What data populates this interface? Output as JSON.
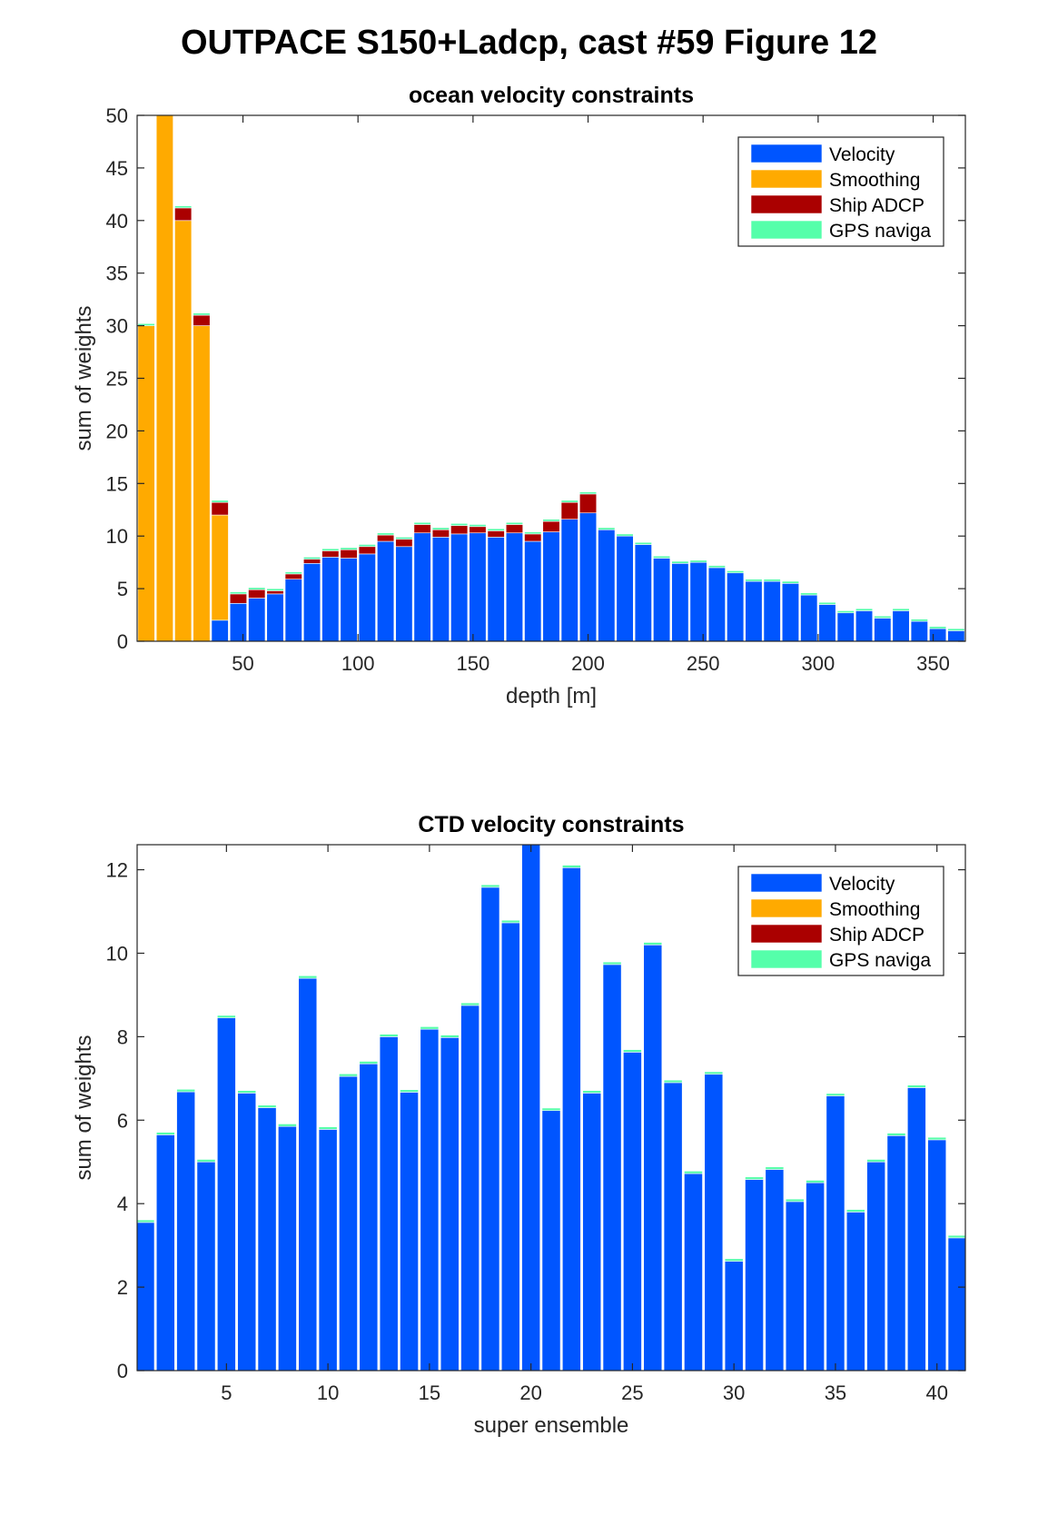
{
  "figure": {
    "title": "OUTPACE S150+Ladcp, cast #59  Figure 12"
  },
  "chart_data": [
    {
      "type": "bar",
      "stacked": true,
      "title": "ocean velocity constraints",
      "xlabel": "depth [m]",
      "ylabel": "sum of weights",
      "xlim": [
        4,
        364
      ],
      "ylim": [
        0,
        50
      ],
      "xticks": [
        50,
        100,
        150,
        200,
        250,
        300,
        350
      ],
      "yticks": [
        0,
        5,
        10,
        15,
        20,
        25,
        30,
        35,
        40,
        45,
        50
      ],
      "bar_width": 7.3,
      "legend_position": "top-right",
      "x": [
        8,
        16,
        24,
        32,
        40,
        48,
        56,
        64,
        72,
        80,
        88,
        96,
        104,
        112,
        120,
        128,
        136,
        144,
        152,
        160,
        168,
        176,
        184,
        192,
        200,
        208,
        216,
        224,
        232,
        240,
        248,
        256,
        264,
        272,
        280,
        288,
        296,
        304,
        312,
        320,
        328,
        336,
        344,
        352,
        360
      ],
      "series": [
        {
          "name": "Velocity",
          "color": "#0055ff",
          "values": [
            0,
            0,
            0,
            0,
            2,
            3.6,
            4.1,
            4.5,
            5.9,
            7.4,
            8.0,
            7.9,
            8.3,
            9.5,
            9.0,
            10.3,
            9.9,
            10.2,
            10.3,
            9.9,
            10.3,
            9.5,
            10.4,
            11.6,
            12.2,
            10.6,
            10.0,
            9.2,
            7.9,
            7.4,
            7.5,
            7.0,
            6.5,
            5.7,
            5.7,
            5.5,
            4.4,
            3.5,
            2.7,
            2.9,
            2.2,
            2.9,
            1.9,
            1.2,
            1.0
          ]
        },
        {
          "name": "Smoothing",
          "color": "#ffaa00",
          "values": [
            30,
            50,
            40,
            30,
            10,
            0,
            0,
            0,
            0,
            0,
            0,
            0,
            0,
            0,
            0,
            0,
            0,
            0,
            0,
            0,
            0,
            0,
            0,
            0,
            0,
            0,
            0,
            0,
            0,
            0,
            0,
            0,
            0,
            0,
            0,
            0,
            0,
            0,
            0,
            0,
            0,
            0,
            0,
            0,
            0
          ]
        },
        {
          "name": "Ship ADCP",
          "color": "#aa0000",
          "values": [
            0,
            0,
            1.2,
            1.0,
            1.2,
            0.9,
            0.8,
            0.3,
            0.5,
            0.4,
            0.6,
            0.8,
            0.7,
            0.6,
            0.7,
            0.8,
            0.7,
            0.8,
            0.6,
            0.6,
            0.8,
            0.7,
            1.0,
            1.6,
            1.8,
            0,
            0,
            0,
            0,
            0,
            0,
            0,
            0,
            0,
            0,
            0,
            0,
            0,
            0,
            0,
            0,
            0,
            0,
            0,
            0
          ]
        },
        {
          "name": "GPS naviga",
          "color": "#55ffaa",
          "values": [
            0.2,
            0.2,
            0.2,
            0.2,
            0.2,
            0.2,
            0.2,
            0.2,
            0.2,
            0.2,
            0.2,
            0.2,
            0.2,
            0.2,
            0.2,
            0.2,
            0.2,
            0.2,
            0.2,
            0.2,
            0.2,
            0.2,
            0.2,
            0.2,
            0.2,
            0.2,
            0.2,
            0.2,
            0.2,
            0.2,
            0.2,
            0.2,
            0.2,
            0.2,
            0.2,
            0.2,
            0.2,
            0.2,
            0.2,
            0.2,
            0.2,
            0.2,
            0.2,
            0.2,
            0.2
          ]
        }
      ]
    },
    {
      "type": "bar",
      "stacked": true,
      "title": "CTD velocity constraints",
      "xlabel": "super ensemble",
      "ylabel": "sum of weights",
      "xlim": [
        0.6,
        41.4
      ],
      "ylim": [
        0,
        12.6
      ],
      "xticks": [
        5,
        10,
        15,
        20,
        25,
        30,
        35,
        40
      ],
      "yticks": [
        0,
        2,
        4,
        6,
        8,
        10,
        12
      ],
      "bar_width": 0.9,
      "legend_position": "top-right",
      "x": [
        1,
        2,
        3,
        4,
        5,
        6,
        7,
        8,
        9,
        10,
        11,
        12,
        13,
        14,
        15,
        16,
        17,
        18,
        19,
        20,
        21,
        22,
        23,
        24,
        25,
        26,
        27,
        28,
        29,
        30,
        31,
        32,
        33,
        34,
        35,
        36,
        37,
        38,
        39,
        40,
        41
      ],
      "series": [
        {
          "name": "Velocity",
          "color": "#0055ff",
          "values": [
            3.55,
            5.65,
            6.68,
            5.0,
            8.45,
            6.65,
            6.3,
            5.85,
            9.4,
            5.78,
            7.05,
            7.35,
            8.0,
            6.67,
            8.18,
            7.98,
            8.75,
            11.58,
            10.73,
            12.6,
            6.23,
            12.05,
            6.65,
            9.73,
            7.63,
            10.2,
            6.9,
            4.72,
            7.1,
            2.62,
            4.58,
            4.82,
            4.05,
            4.5,
            6.58,
            3.8,
            5.0,
            5.63,
            6.78,
            5.53,
            3.18
          ]
        },
        {
          "name": "Smoothing",
          "color": "#ffaa00",
          "values": [
            0,
            0,
            0,
            0,
            0,
            0,
            0,
            0,
            0,
            0,
            0,
            0,
            0,
            0,
            0,
            0,
            0,
            0,
            0,
            0,
            0,
            0,
            0,
            0,
            0,
            0,
            0,
            0,
            0,
            0,
            0,
            0,
            0,
            0,
            0,
            0,
            0,
            0,
            0,
            0,
            0
          ]
        },
        {
          "name": "Ship ADCP",
          "color": "#aa0000",
          "values": [
            0,
            0,
            0,
            0,
            0,
            0,
            0,
            0,
            0,
            0,
            0,
            0,
            0,
            0,
            0,
            0,
            0,
            0,
            0,
            0,
            0,
            0,
            0,
            0,
            0,
            0,
            0,
            0,
            0,
            0,
            0,
            0,
            0,
            0,
            0,
            0,
            0,
            0,
            0,
            0,
            0
          ]
        },
        {
          "name": "GPS naviga",
          "color": "#55ffaa",
          "values": [
            0.06,
            0.06,
            0.06,
            0.06,
            0.06,
            0.06,
            0.06,
            0.06,
            0.06,
            0.06,
            0.06,
            0.06,
            0.06,
            0.06,
            0.06,
            0.06,
            0.06,
            0.06,
            0.06,
            0.06,
            0.06,
            0.06,
            0.06,
            0.06,
            0.06,
            0.06,
            0.06,
            0.06,
            0.06,
            0.06,
            0.06,
            0.06,
            0.06,
            0.06,
            0.06,
            0.06,
            0.06,
            0.06,
            0.06,
            0.06,
            0.06
          ]
        }
      ]
    }
  ]
}
